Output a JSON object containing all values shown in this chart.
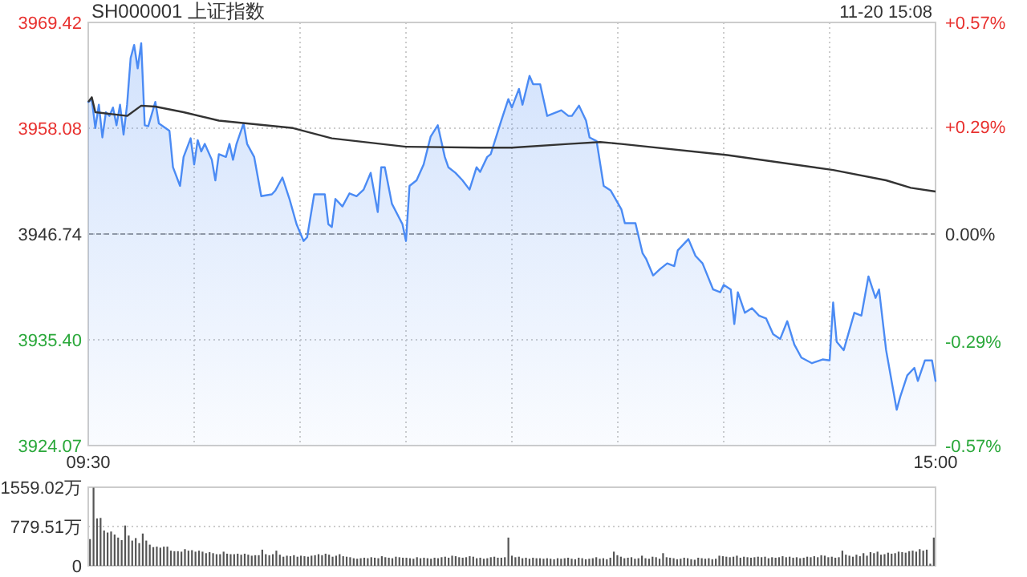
{
  "chart_data": [
    {
      "type": "area",
      "title": "SH000001 上证指数",
      "annotations": [
        "11-20 15:08"
      ],
      "categories": [
        "09:30",
        null,
        null,
        null,
        null,
        null,
        null,
        null,
        null,
        null,
        null,
        null,
        null,
        null,
        null,
        null,
        null,
        null,
        null,
        null,
        null,
        null,
        null,
        null,
        null,
        null,
        null,
        null,
        null,
        null,
        null,
        null,
        null,
        null,
        null,
        null,
        null,
        null,
        null,
        null,
        null,
        null,
        null,
        null,
        null,
        null,
        null,
        null,
        null,
        null,
        null,
        null,
        null,
        null,
        null,
        null,
        null,
        null,
        null,
        null,
        null,
        null,
        null,
        null,
        null,
        null,
        null,
        null,
        null,
        null,
        null,
        null,
        null,
        null,
        null,
        null,
        null,
        null,
        null,
        null,
        null,
        null,
        null,
        null,
        null,
        null,
        null,
        null,
        null,
        null,
        null,
        null,
        null,
        null,
        null,
        null,
        null,
        null,
        null,
        null,
        null,
        null,
        null,
        null,
        null,
        null,
        null,
        null,
        null,
        null,
        null,
        null,
        null,
        null,
        null,
        null,
        null,
        null,
        null,
        null,
        null,
        null,
        null,
        null,
        null,
        null,
        null,
        null,
        null,
        null,
        null,
        null,
        null,
        null,
        null,
        null,
        null,
        null,
        null,
        null,
        null,
        null,
        null,
        null,
        null,
        null,
        null,
        null,
        null,
        null,
        null,
        null,
        null,
        null,
        null,
        null,
        null,
        null,
        null,
        null,
        null,
        null,
        null,
        null,
        null,
        null,
        null,
        null,
        null,
        null,
        null,
        null,
        null,
        null,
        null,
        null,
        null,
        null,
        null,
        null,
        null,
        null,
        null,
        null,
        null,
        null,
        null,
        null,
        null,
        null,
        null,
        null,
        null,
        null,
        null,
        null,
        null,
        null,
        null,
        null,
        null,
        null,
        null,
        null,
        null,
        null,
        null,
        null,
        null,
        null,
        null,
        null,
        null,
        null,
        null,
        null,
        null,
        null,
        null,
        null,
        null,
        null,
        null,
        null,
        null,
        null,
        null,
        null,
        null,
        null,
        null,
        null,
        null,
        null,
        null,
        null,
        null,
        null,
        null,
        null,
        "15:00"
      ],
      "ylim": [
        3924.07,
        3969.42
      ],
      "yticks": [
        3924.07,
        {
          "value": 3935.4,
          "label": "3935.40"
        },
        3946.74,
        3958.08,
        3969.42
      ],
      "y2lim": [
        -0.57,
        0.57
      ],
      "y2ticks": [
        {
          "value": -0.57,
          "label": "-0.57%"
        },
        {
          "value": -0.29,
          "label": "-0.29%"
        },
        {
          "value": 0,
          "label": "0.00%"
        },
        {
          "value": 0.29,
          "label": "+0.29%"
        },
        {
          "value": 0.57,
          "label": "+0.57%"
        }
      ],
      "grid": true,
      "ref_lines": [
        {
          "axis": "y",
          "value": 3946.74,
          "line_style": "dashed",
          "color": "#999999"
        }
      ],
      "series": [
        {
          "color": "#4b8bf4",
          "values": [
            3960.9,
            3961.2,
            3958.1,
            3960.6,
            3957.1,
            3959.8,
            3959.4,
            3960.3,
            3958.4,
            3960.6,
            3957.4,
            3960.6,
            3965.6,
            3967,
            3964.5,
            3967.2,
            3958.4,
            3958.3,
            null,
            3960.9,
            3958.6,
            null,
            null,
            3957.8,
            3953.9,
            null,
            3951.9,
            3955,
            null,
            3957,
            3954.2,
            3956.8,
            3955.6,
            3956.4,
            null,
            3954.7,
            3952.5,
            3955.3,
            null,
            3955,
            3956.4,
            3954.7,
            3956.4,
            null,
            3958.6,
            3956.4,
            null,
            3955,
            null,
            3950.8,
            null,
            null,
            3951,
            3951.4,
            null,
            3952.8,
            null,
            3950.5,
            null,
            3947.8,
            null,
            3946,
            3946.4,
            null,
            3951,
            null,
            null,
            3951,
            3947.8,
            3947.5,
            3950.5,
            null,
            3949.7,
            null,
            3951.1,
            null,
            3950.8,
            null,
            3951.5,
            null,
            3953.3,
            null,
            3949.1,
            3953.9,
            3953.9,
            null,
            3950,
            null,
            null,
            3947.8,
            3946,
            3951.9,
            null,
            3952.5,
            null,
            3954.2,
            null,
            3957.2,
            null,
            3958.4,
            null,
            3955,
            3953.9,
            null,
            3953.3,
            null,
            3952.5,
            null,
            3951.5,
            null,
            3953.9,
            3953.4,
            null,
            3955,
            3955.3,
            null,
            null,
            3958.9,
            null,
            3961.2,
            3960.3,
            null,
            3962.3,
            3960.6,
            null,
            3963.7,
            3962.8,
            null,
            3962.8,
            null,
            3959.4,
            null,
            null,
            null,
            3960,
            null,
            3959.4,
            3959.4,
            null,
            3960.5,
            null,
            3958.9,
            3957.1,
            null,
            3956.7,
            null,
            3951.9,
            null,
            3951.4,
            null,
            null,
            3949.4,
            3947.9,
            null,
            null,
            3947.9,
            null,
            3944.7,
            3944.1,
            null,
            3942.3,
            null,
            3943,
            null,
            3943.6,
            null,
            3943.3,
            3945,
            null,
            null,
            3946.2,
            null,
            3944.4,
            null,
            3943.6,
            null,
            null,
            3940.8,
            null,
            3940.5,
            3941.3,
            null,
            3940.8,
            3937.1,
            3940.5,
            null,
            3938.3,
            null,
            3938.8,
            null,
            3938,
            null,
            3937.7,
            null,
            3936,
            null,
            3935.5,
            null,
            3937.4,
            null,
            3934.9,
            null,
            3933.5,
            null,
            null,
            3932.9,
            null,
            null,
            3933.3,
            null,
            3933.2,
            3939.4,
            3935.2,
            null,
            3934.3,
            null,
            null,
            3938.3,
            null,
            3938,
            null,
            3942.2,
            null,
            3939.9,
            3940.8,
            null,
            3934.3,
            null,
            null,
            3927.9,
            3929.3,
            null,
            3931.6,
            null,
            3932.4,
            3931,
            null,
            3933.2,
            null,
            3933.2,
            3931
          ]
        },
        {
          "type": "line",
          "color": "#333333",
          "values": [
            3960.9,
            3961.4,
            3959.8,
            null,
            null,
            null,
            null,
            null,
            null,
            null,
            null,
            3959.4,
            null,
            null,
            null,
            3960.5,
            null,
            null,
            null,
            3960.4,
            null,
            null,
            null,
            null,
            null,
            null,
            null,
            3959.8,
            null,
            null,
            null,
            null,
            null,
            null,
            null,
            null,
            null,
            3958.9,
            null,
            null,
            null,
            null,
            null,
            null,
            null,
            null,
            null,
            null,
            null,
            null,
            null,
            null,
            null,
            null,
            null,
            null,
            null,
            null,
            3958.1,
            null,
            null,
            null,
            null,
            null,
            null,
            null,
            null,
            null,
            null,
            3957,
            null,
            null,
            null,
            null,
            null,
            null,
            null,
            null,
            null,
            null,
            null,
            null,
            null,
            null,
            null,
            null,
            null,
            null,
            null,
            null,
            3956.1,
            null,
            null,
            null,
            null,
            null,
            null,
            null,
            null,
            null,
            null,
            null,
            null,
            null,
            null,
            null,
            null,
            null,
            null,
            null,
            null,
            3956,
            null,
            null,
            null,
            null,
            null,
            null,
            null,
            null,
            3956,
            null,
            null,
            null,
            null,
            null,
            null,
            null,
            null,
            null,
            null,
            null,
            null,
            null,
            null,
            null,
            3956.4,
            null,
            null,
            null,
            null,
            null,
            null,
            null,
            null,
            3956.6,
            null,
            null,
            null,
            null,
            null,
            3956.4,
            null,
            null,
            null,
            null,
            null,
            null,
            null,
            null,
            null,
            null,
            null,
            null,
            null,
            null,
            null,
            null,
            null,
            null,
            null,
            null,
            null,
            null,
            null,
            null,
            null,
            null,
            null,
            null,
            null,
            3955.2,
            null,
            null,
            null,
            null,
            null,
            null,
            null,
            null,
            null,
            null,
            null,
            null,
            null,
            null,
            null,
            null,
            null,
            null,
            null,
            null,
            null,
            null,
            null,
            null,
            null,
            null,
            null,
            null,
            null,
            3953.6,
            null,
            null,
            null,
            null,
            null,
            null,
            null,
            null,
            null,
            null,
            null,
            null,
            null,
            null,
            3952.5,
            null,
            null,
            null,
            null,
            null,
            null,
            3951.7,
            null,
            null,
            null,
            null,
            null,
            null,
            3951.3
          ]
        }
      ]
    },
    {
      "type": "bar",
      "tick_labels": "y",
      "grid": "y",
      "color": "#555555",
      "ylim": [
        0,
        1559.02
      ],
      "yticks": [
        0,
        {
          "value": 779.51,
          "label": "779.51万"
        },
        {
          "value": 1559.02,
          "label": "1559.02万"
        }
      ],
      "categories": [
        null,
        null,
        null,
        null,
        null,
        null,
        null,
        null,
        null,
        null,
        null,
        null,
        null,
        null,
        null,
        null,
        null,
        null,
        null,
        null,
        null,
        null,
        null,
        null,
        null,
        null,
        null,
        null,
        null,
        null,
        null,
        null,
        null,
        null,
        null,
        null,
        null,
        null,
        null,
        null,
        null,
        null,
        null,
        null,
        null,
        null,
        null,
        null,
        null,
        null,
        null,
        null,
        null,
        null,
        null,
        null,
        null,
        null,
        null,
        null,
        null,
        null,
        null,
        null,
        null,
        null,
        null,
        null,
        null,
        null,
        null,
        null,
        null,
        null,
        null,
        null,
        null,
        null,
        null,
        null,
        null,
        null,
        null,
        null,
        null,
        null,
        null,
        null,
        null,
        null,
        null,
        null,
        null,
        null,
        null,
        null,
        null,
        null,
        null,
        null,
        null,
        null,
        null,
        null,
        null,
        null,
        null,
        null,
        null,
        null,
        null,
        null,
        null,
        null,
        null,
        null,
        null,
        null,
        null,
        null,
        null,
        null,
        null,
        null,
        null,
        null,
        null,
        null,
        null,
        null,
        null,
        null,
        null,
        null,
        null,
        null,
        null,
        null,
        null,
        null,
        null,
        null,
        null,
        null,
        null,
        null,
        null,
        null,
        null,
        null,
        null,
        null,
        null,
        null,
        null,
        null,
        null,
        null,
        null,
        null,
        null,
        null,
        null,
        null,
        null,
        null,
        null,
        null,
        null,
        null,
        null,
        null,
        null,
        null,
        null,
        null,
        null,
        null,
        null,
        null,
        null,
        null,
        null,
        null,
        null,
        null,
        null,
        null,
        null,
        null,
        null,
        null,
        null,
        null,
        null,
        null,
        null,
        null,
        null,
        null,
        null,
        null,
        null,
        null,
        null,
        null,
        null,
        null,
        null,
        null,
        null,
        null,
        null,
        null,
        null,
        null,
        null,
        null,
        null,
        null,
        null,
        null,
        null,
        null,
        null,
        null,
        null,
        null,
        null,
        null,
        null,
        null,
        null,
        null,
        null,
        null,
        null,
        null,
        null,
        null,
        null
      ],
      "values": [
        530,
        1550,
        940,
        950,
        700,
        660,
        680,
        620,
        560,
        510,
        800,
        600,
        500,
        550,
        450,
        640,
        500,
        420,
        370,
        380,
        360,
        380,
        380,
        300,
        290,
        290,
        280,
        330,
        300,
        310,
        280,
        300,
        280,
        250,
        270,
        250,
        230,
        230,
        280,
        240,
        230,
        230,
        240,
        220,
        240,
        220,
        200,
        210,
        210,
        320,
        230,
        210,
        230,
        300,
        220,
        180,
        200,
        190,
        210,
        180,
        200,
        190,
        180,
        200,
        210,
        230,
        210,
        240,
        220,
        180,
        200,
        230,
        190,
        180,
        170,
        150,
        140,
        150,
        160,
        150,
        170,
        160,
        150,
        190,
        170,
        160,
        150,
        180,
        170,
        160,
        160,
        150,
        140,
        170,
        150,
        160,
        150,
        140,
        160,
        150,
        170,
        180,
        160,
        200,
        190,
        170,
        160,
        170,
        190,
        180,
        150,
        160,
        140,
        150,
        170,
        180,
        160,
        160,
        170,
        560,
        200,
        170,
        180,
        150,
        160,
        140,
        160,
        150,
        150,
        140,
        150,
        140,
        130,
        150,
        140,
        150,
        160,
        140,
        130,
        160,
        150,
        130,
        140,
        150,
        170,
        140,
        150,
        130,
        160,
        280,
        210,
        180,
        150,
        160,
        170,
        140,
        150,
        200,
        150,
        140,
        180,
        170,
        140,
        250,
        170,
        160,
        150,
        130,
        140,
        160,
        150,
        130,
        120,
        160,
        150,
        140,
        150,
        130,
        140,
        200,
        190,
        180,
        170,
        180,
        200,
        160,
        180,
        170,
        160,
        170,
        180,
        170,
        180,
        150,
        170,
        160,
        170,
        190,
        170,
        180,
        160,
        170,
        150,
        160,
        180,
        170,
        190,
        170,
        210,
        200,
        170,
        180,
        160,
        170,
        300,
        220,
        200,
        180,
        220,
        190,
        250,
        200,
        270,
        250,
        280,
        220,
        230,
        260,
        240,
        250,
        280,
        270,
        260,
        290,
        300,
        280,
        330,
        300,
        320,
        40,
        560
      ]
    }
  ]
}
